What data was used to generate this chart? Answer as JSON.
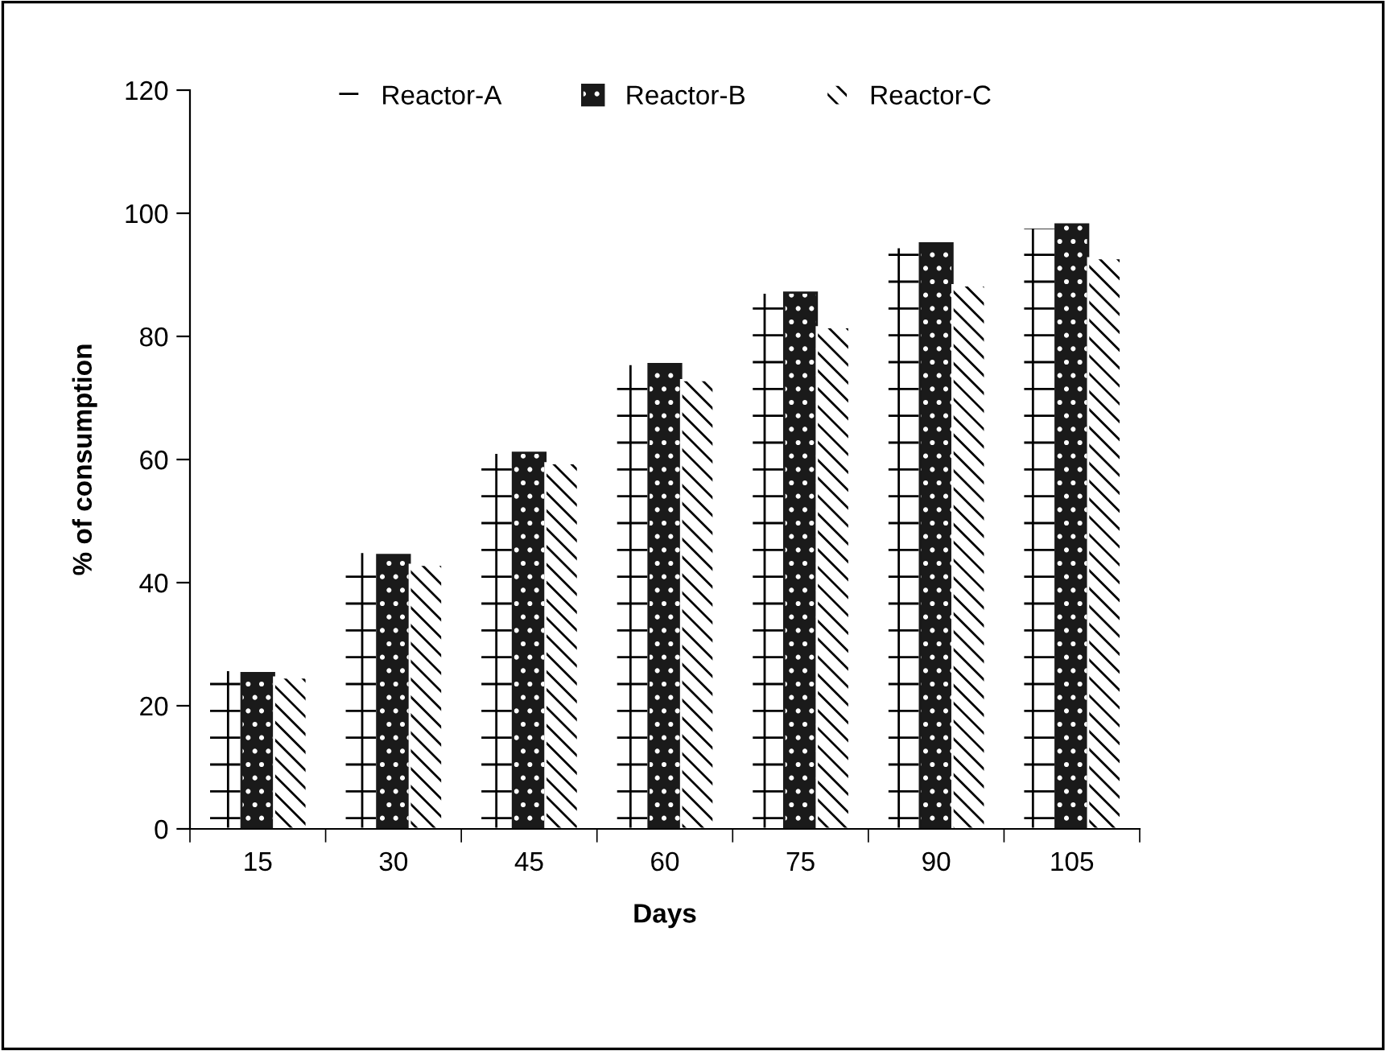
{
  "chart_data": {
    "type": "bar",
    "xlabel": "Days",
    "ylabel": "% of consumption",
    "categories": [
      "15",
      "30",
      "45",
      "60",
      "75",
      "90",
      "105"
    ],
    "series": [
      {
        "name": "Reactor-A",
        "color": "#ffffff",
        "values": [
          25.8,
          45.0,
          61.1,
          75.5,
          87.1,
          94.5,
          97.7
        ]
      },
      {
        "name": "Reactor-B",
        "color": "#1a1a1a",
        "values": [
          25.3,
          44.5,
          61.1,
          75.5,
          87.1,
          95.1,
          98.2
        ]
      },
      {
        "name": "Reactor-C",
        "color": "#ffffff",
        "values": [
          24.6,
          42.9,
          59.4,
          72.9,
          81.5,
          88.3,
          92.7
        ]
      }
    ],
    "ylim": [
      0,
      120
    ],
    "yticks": [
      0,
      20,
      40,
      60,
      80,
      100,
      120
    ],
    "grid": false,
    "legend": "top"
  }
}
